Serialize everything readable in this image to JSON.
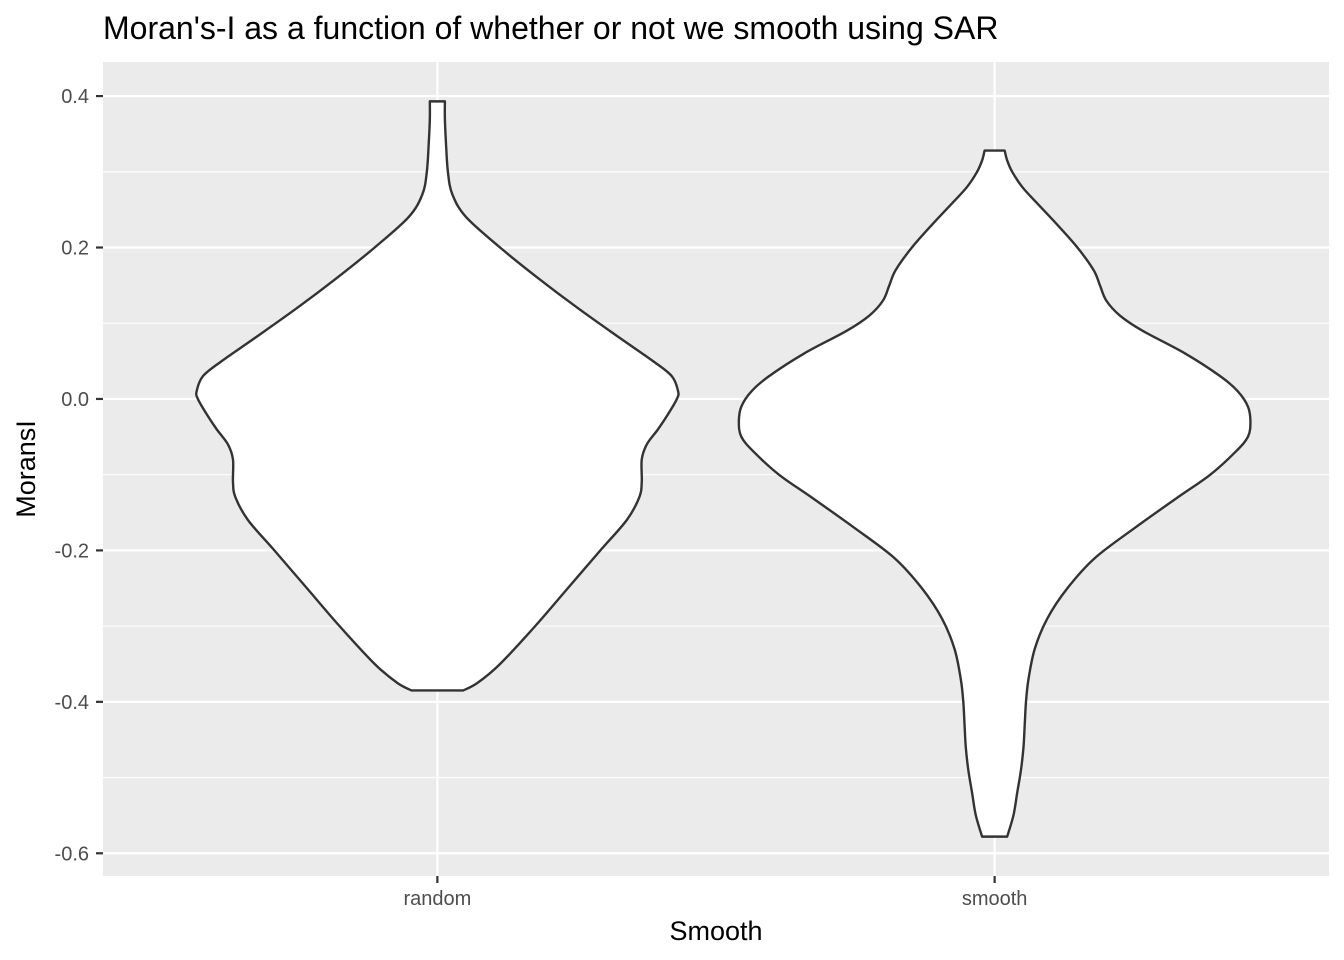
{
  "chart_data": {
    "type": "violin",
    "title": "Moran's-I as a function of whether or not we smooth using SAR",
    "xlabel": "Smooth",
    "ylabel": "MoransI",
    "categories": [
      "random",
      "smooth"
    ],
    "ylim": [
      -0.63,
      0.445
    ],
    "y_ticks": [
      -0.6,
      -0.4,
      -0.2,
      0.0,
      0.2,
      0.4
    ],
    "y_tick_labels": [
      "-0.6",
      "-0.4",
      "-0.2",
      "0.0",
      "0.2",
      "0.4"
    ],
    "grid": true,
    "legend": "none",
    "colors": {
      "panel": "#ebebeb",
      "grid": "#ffffff",
      "fill": "#ffffff",
      "outline": "#333333"
    },
    "violins": [
      {
        "category": "random",
        "min": -0.385,
        "max": 0.393,
        "profile": [
          [
            -0.385,
            0.103
          ],
          [
            -0.375,
            0.16
          ],
          [
            -0.35,
            0.25
          ],
          [
            -0.3,
            0.39
          ],
          [
            -0.25,
            0.52
          ],
          [
            -0.2,
            0.65
          ],
          [
            -0.16,
            0.755
          ],
          [
            -0.13,
            0.805
          ],
          [
            -0.11,
            0.815
          ],
          [
            -0.08,
            0.815
          ],
          [
            -0.06,
            0.835
          ],
          [
            -0.04,
            0.88
          ],
          [
            -0.02,
            0.92
          ],
          [
            0.0,
            0.955
          ],
          [
            0.01,
            0.96
          ],
          [
            0.03,
            0.935
          ],
          [
            0.05,
            0.86
          ],
          [
            0.08,
            0.73
          ],
          [
            0.12,
            0.56
          ],
          [
            0.16,
            0.4
          ],
          [
            0.2,
            0.25
          ],
          [
            0.24,
            0.115
          ],
          [
            0.27,
            0.06
          ],
          [
            0.3,
            0.042
          ],
          [
            0.34,
            0.034
          ],
          [
            0.37,
            0.03
          ],
          [
            0.393,
            0.03
          ]
        ]
      },
      {
        "category": "smooth",
        "min": -0.578,
        "max": 0.328,
        "profile": [
          [
            -0.578,
            0.05
          ],
          [
            -0.55,
            0.075
          ],
          [
            -0.52,
            0.09
          ],
          [
            -0.49,
            0.105
          ],
          [
            -0.46,
            0.115
          ],
          [
            -0.43,
            0.12
          ],
          [
            -0.4,
            0.125
          ],
          [
            -0.37,
            0.135
          ],
          [
            -0.33,
            0.16
          ],
          [
            -0.29,
            0.21
          ],
          [
            -0.25,
            0.29
          ],
          [
            -0.21,
            0.4
          ],
          [
            -0.17,
            0.56
          ],
          [
            -0.13,
            0.73
          ],
          [
            -0.1,
            0.86
          ],
          [
            -0.07,
            0.96
          ],
          [
            -0.05,
            1.01
          ],
          [
            -0.03,
            1.02
          ],
          [
            -0.01,
            1.01
          ],
          [
            0.01,
            0.97
          ],
          [
            0.03,
            0.9
          ],
          [
            0.06,
            0.76
          ],
          [
            0.09,
            0.59
          ],
          [
            0.11,
            0.5
          ],
          [
            0.13,
            0.445
          ],
          [
            0.15,
            0.42
          ],
          [
            0.17,
            0.395
          ],
          [
            0.2,
            0.33
          ],
          [
            0.23,
            0.25
          ],
          [
            0.26,
            0.165
          ],
          [
            0.28,
            0.11
          ],
          [
            0.3,
            0.07
          ],
          [
            0.315,
            0.05
          ],
          [
            0.328,
            0.04
          ]
        ]
      }
    ]
  }
}
